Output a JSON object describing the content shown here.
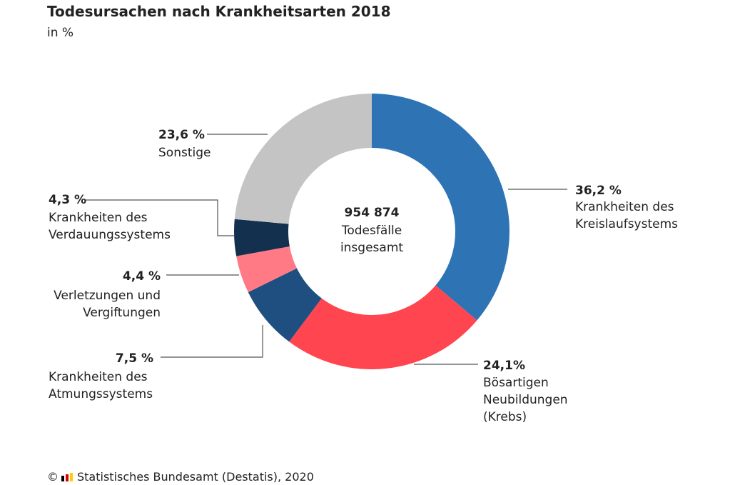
{
  "chart_data": {
    "type": "donut",
    "title": "Todesursachen nach Krankheitsarten 2018",
    "subtitle": "in %",
    "center_value": "954 874",
    "center_label": "Todesfälle\ninsgesamt",
    "categories": [
      "Krankheiten des\nKreislaufsystems",
      "Bösartigen\nNeubildungen\n(Krebs)",
      "Krankheiten des\nAtmungssystems",
      "Verletzungen und\nVergiftungen",
      "Krankheiten des\nVerdauungssystems",
      "Sonstige"
    ],
    "values": [
      36.2,
      24.1,
      7.5,
      4.4,
      4.3,
      23.6
    ],
    "value_labels": [
      "36,2 %",
      "24,1%",
      "7,5 %",
      "4,4 %",
      "4,3 %",
      "23,6 %"
    ],
    "colors": [
      "#2e74b5",
      "#ff4650",
      "#1f4e80",
      "#ff7a85",
      "#14304f",
      "#c4c4c4"
    ],
    "copyright": "©",
    "source": "Statistisches Bundesamt (Destatis), 2020"
  }
}
